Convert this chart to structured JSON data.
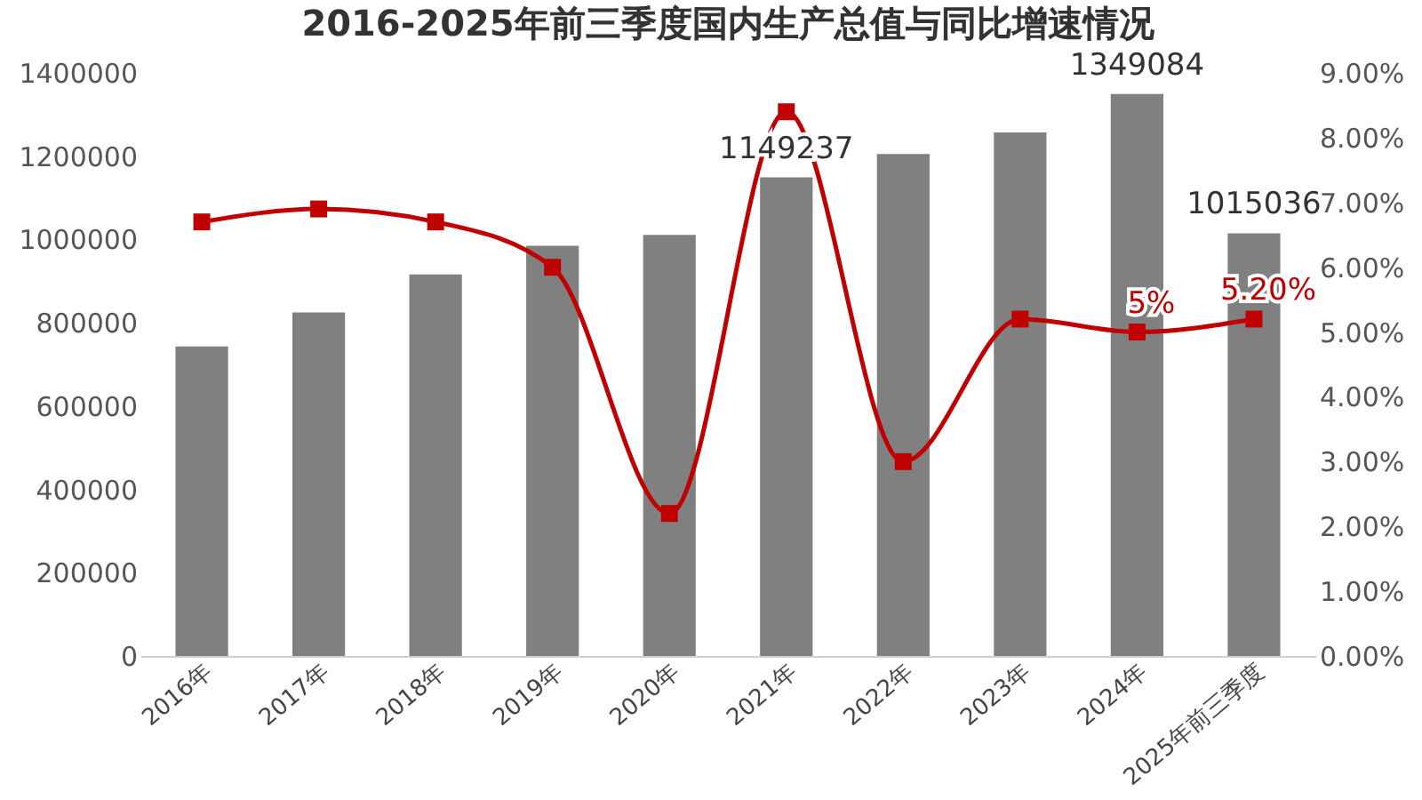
{
  "chart_data": {
    "type": "bar",
    "title": "2016-2025年前三季度国内生产总值与同比增速情况",
    "categories": [
      "2016年",
      "2017年",
      "2018年",
      "2019年",
      "2020年",
      "2021年",
      "2022年",
      "2023年",
      "2024年",
      "2025年前三季度"
    ],
    "series": [
      {
        "color": "#808080",
        "values": [
          743000,
          825000,
          916000,
          985000,
          1011000,
          1149237,
          1205000,
          1257000,
          1349084,
          1015036
        ],
        "value_labels": [
          null,
          null,
          null,
          null,
          null,
          "1149237",
          null,
          null,
          "1349084",
          "1015036"
        ]
      },
      {
        "type": "line",
        "axis": "y2",
        "color": "#c00000",
        "marker": "square",
        "values": [
          6.7,
          6.9,
          6.7,
          6.0,
          2.2,
          8.4,
          3.0,
          5.2,
          5,
          5.2
        ],
        "value_labels": [
          null,
          null,
          null,
          null,
          null,
          null,
          null,
          null,
          "5%",
          "5.20%"
        ]
      }
    ],
    "ylim": [
      0,
      1400000
    ],
    "yticks": [
      0,
      200000,
      400000,
      600000,
      800000,
      1000000,
      1200000,
      1400000
    ],
    "y2lim": [
      0,
      9
    ],
    "y2ticks": [
      {
        "value": 0,
        "label": "0.00%"
      },
      {
        "value": 1,
        "label": "1.00%"
      },
      {
        "value": 2,
        "label": "2.00%"
      },
      {
        "value": 3,
        "label": "3.00%"
      },
      {
        "value": 4,
        "label": "4.00%"
      },
      {
        "value": 5,
        "label": "5.00%"
      },
      {
        "value": 6,
        "label": "6.00%"
      },
      {
        "value": 7,
        "label": "7.00%"
      },
      {
        "value": 8,
        "label": "8.00%"
      },
      {
        "value": 9,
        "label": "9.00%"
      }
    ]
  }
}
